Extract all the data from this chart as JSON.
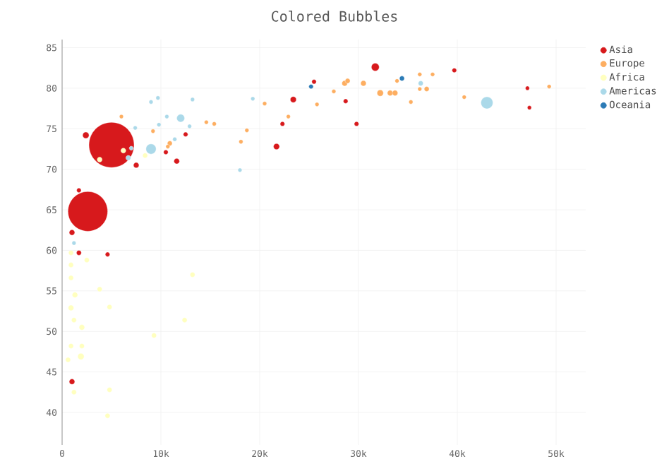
{
  "chart_data": {
    "type": "bubble",
    "title": "Colored Bubbles",
    "xlim": [
      0,
      53000
    ],
    "ylim": [
      36,
      86
    ],
    "xticks": [
      0,
      {
        "value": 10000,
        "label": "10k"
      },
      {
        "value": 20000,
        "label": "20k"
      },
      {
        "value": 30000,
        "label": "30k"
      },
      {
        "value": 40000,
        "label": "40k"
      },
      {
        "value": 50000,
        "label": "50k"
      }
    ],
    "yticks": [
      40,
      45,
      50,
      55,
      60,
      65,
      70,
      75,
      80,
      85
    ],
    "grid": true,
    "legend": "top right",
    "series": [
      {
        "name": "Asia",
        "color": "#d7191c",
        "x": [
          5000,
          2600,
          1700,
          1000,
          1700,
          4600,
          1000,
          2400,
          7500,
          11600,
          10500,
          12500,
          31700,
          25500,
          23400,
          22300,
          21700,
          28700,
          29800,
          39700,
          47100,
          47300
        ],
        "values": [
          73.0,
          64.8,
          67.4,
          62.2,
          59.7,
          59.5,
          43.8,
          74.2,
          70.5,
          71.0,
          72.1,
          74.3,
          82.6,
          80.8,
          78.6,
          75.6,
          72.8,
          78.4,
          75.6,
          82.2,
          80.0,
          77.6
        ],
        "sizes": [
          1,
          0.77,
          0.01,
          0.015,
          0.012,
          0.01,
          0.015,
          0.02,
          0.015,
          0.015,
          0.01,
          0.01,
          0.03,
          0.01,
          0.018,
          0.01,
          0.018,
          0.01,
          0.01,
          0.01,
          0.008,
          0.008
        ]
      },
      {
        "name": "Europe",
        "color": "#fdae61",
        "x": [
          6000,
          9200,
          10900,
          14600,
          15400,
          10700,
          18700,
          18100,
          20500,
          22900,
          25800,
          27500,
          28600,
          28900,
          30500,
          32200,
          33200,
          33700,
          33900,
          35300,
          36200,
          36200,
          37500,
          36900,
          40700,
          49300
        ],
        "values": [
          76.5,
          74.7,
          73.2,
          75.8,
          75.6,
          72.8,
          74.8,
          73.4,
          78.1,
          76.5,
          78.0,
          79.6,
          80.6,
          80.9,
          80.6,
          79.4,
          79.4,
          79.4,
          80.9,
          78.3,
          81.7,
          79.9,
          81.7,
          79.9,
          78.9,
          80.2
        ],
        "sizes": [
          0.008,
          0.008,
          0.012,
          0.008,
          0.008,
          0.008,
          0.008,
          0.008,
          0.008,
          0.008,
          0.008,
          0.008,
          0.015,
          0.012,
          0.015,
          0.02,
          0.015,
          0.015,
          0.008,
          0.008,
          0.008,
          0.008,
          0.008,
          0.012,
          0.008,
          0.008
        ]
      },
      {
        "name": "Africa",
        "color": "#ffffbf",
        "x": [
          900,
          900,
          2500,
          900,
          1300,
          900,
          1200,
          2000,
          3800,
          4800,
          900,
          1900,
          600,
          1200,
          4800,
          4600,
          9300,
          13200,
          12400,
          2000,
          6200,
          3800,
          8400
        ],
        "values": [
          59.7,
          58.2,
          58.8,
          56.6,
          54.5,
          52.9,
          51.4,
          50.5,
          55.2,
          53.0,
          48.2,
          46.9,
          46.5,
          42.5,
          42.8,
          39.6,
          49.5,
          57.0,
          51.4,
          48.2,
          72.3,
          71.2,
          71.7
        ],
        "sizes": [
          0.012,
          0.012,
          0.012,
          0.012,
          0.015,
          0.015,
          0.012,
          0.015,
          0.012,
          0.012,
          0.012,
          0.02,
          0.012,
          0.012,
          0.012,
          0.012,
          0.012,
          0.012,
          0.012,
          0.012,
          0.012,
          0.012,
          0.012
        ]
      },
      {
        "name": "Americas",
        "color": "#abd9e9",
        "x": [
          9000,
          12000,
          9000,
          9700,
          13200,
          10600,
          9800,
          12900,
          11400,
          7000,
          7400,
          6700,
          1200,
          19300,
          18000,
          36300,
          43000
        ],
        "values": [
          72.5,
          76.3,
          78.3,
          78.8,
          78.6,
          76.5,
          75.5,
          75.3,
          73.7,
          72.6,
          75.1,
          71.4,
          60.9,
          78.7,
          69.9,
          80.6,
          78.2
        ],
        "sizes": [
          0.05,
          0.03,
          0.008,
          0.008,
          0.008,
          0.008,
          0.008,
          0.008,
          0.008,
          0.008,
          0.008,
          0.012,
          0.008,
          0.008,
          0.008,
          0.012,
          0.07
        ]
      },
      {
        "name": "Oceania",
        "color": "#2c7bb6",
        "x": [
          25200,
          34400
        ],
        "values": [
          80.2,
          81.2
        ],
        "sizes": [
          0.01,
          0.012
        ]
      }
    ]
  }
}
